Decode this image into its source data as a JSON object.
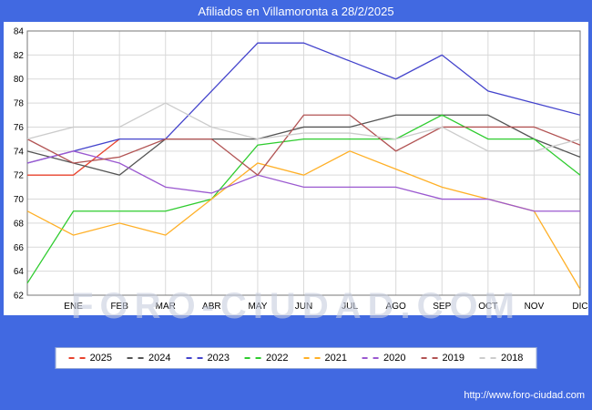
{
  "title": "Afiliados en Villamoronta a 28/2/2025",
  "watermark": "FORO-CIUDAD.COM",
  "footer_url": "http://www.foro-ciudad.com",
  "colors": {
    "page_bg": "#4169e1",
    "chart_bg": "#ffffff",
    "grid": "#d9d9d9",
    "plot_border": "#777777",
    "axis_text": "#000000"
  },
  "chart_data": {
    "type": "line",
    "title": "Afiliados en Villamoronta a 28/2/2025",
    "x_labels": [
      "ENE",
      "FEB",
      "MAR",
      "ABR",
      "MAY",
      "JUN",
      "JUL",
      "AGO",
      "SEP",
      "OCT",
      "NOV",
      "DIC"
    ],
    "lead_point": "each series has one unlabeled point at the left axis edge before ENE",
    "ylim": [
      62,
      84
    ],
    "ytick_step": 2,
    "grid": true,
    "legend_position": "bottom",
    "series": [
      {
        "name": "2025",
        "color": "#e8432e",
        "values": [
          72,
          72,
          75,
          null,
          null,
          null,
          null,
          null,
          null,
          null,
          null,
          null,
          null
        ]
      },
      {
        "name": "2024",
        "color": "#555555",
        "values": [
          74,
          73,
          72,
          75,
          75,
          75,
          76,
          76,
          77,
          77,
          77,
          75,
          73.5
        ]
      },
      {
        "name": "2023",
        "color": "#4444cc",
        "values": [
          73,
          74,
          75,
          75,
          79,
          83,
          83,
          81.5,
          80,
          82,
          79,
          78,
          77
        ]
      },
      {
        "name": "2022",
        "color": "#2fcc2f",
        "values": [
          63,
          69,
          69,
          69,
          70,
          74.5,
          75,
          75,
          75,
          77,
          75,
          75,
          72
        ]
      },
      {
        "name": "2021",
        "color": "#ffb027",
        "values": [
          69,
          67,
          68,
          67,
          70,
          73,
          72,
          74,
          72.5,
          71,
          70,
          69,
          62.5
        ]
      },
      {
        "name": "2020",
        "color": "#9b59d0",
        "values": [
          73,
          74,
          73,
          71,
          70.5,
          72,
          71,
          71,
          71,
          70,
          70,
          69,
          69
        ]
      },
      {
        "name": "2019",
        "color": "#b25454",
        "values": [
          75,
          73,
          73.5,
          75,
          75,
          72,
          77,
          77,
          74,
          76,
          76,
          76,
          74.5
        ]
      },
      {
        "name": "2018",
        "color": "#cccccc",
        "values": [
          75,
          76,
          76,
          78,
          76,
          75,
          75.5,
          75.5,
          75,
          76,
          74,
          74,
          75
        ]
      }
    ]
  }
}
